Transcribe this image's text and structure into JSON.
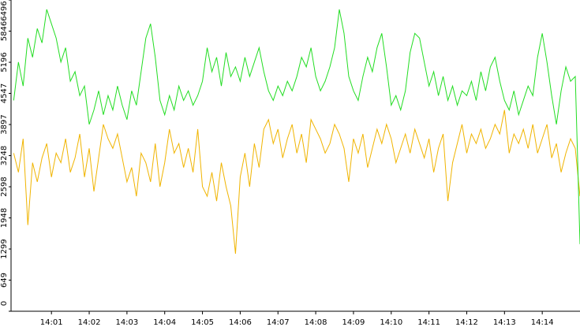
{
  "chart_data": {
    "type": "line",
    "x": [
      0,
      0.125,
      0.25,
      0.375,
      0.5,
      0.625,
      0.75,
      0.875,
      1,
      1.125,
      1.25,
      1.375,
      1.5,
      1.625,
      1.75,
      1.875,
      2,
      2.125,
      2.25,
      2.375,
      2.5,
      2.625,
      2.75,
      2.875,
      3,
      3.125,
      3.25,
      3.375,
      3.5,
      3.625,
      3.75,
      3.875,
      4,
      4.125,
      4.25,
      4.375,
      4.5,
      4.625,
      4.75,
      4.875,
      5,
      5.125,
      5.25,
      5.375,
      5.5,
      5.625,
      5.75,
      5.875,
      6,
      6.125,
      6.25,
      6.375,
      6.5,
      6.625,
      6.75,
      6.875,
      7,
      7.125,
      7.25,
      7.375,
      7.5,
      7.625,
      7.75,
      7.875,
      8,
      8.125,
      8.25,
      8.375,
      8.5,
      8.625,
      8.75,
      8.875,
      9,
      9.125,
      9.25,
      9.375,
      9.5,
      9.625,
      9.75,
      9.875,
      10,
      10.125,
      10.25,
      10.375,
      10.5,
      10.625,
      10.75,
      10.875,
      11,
      11.125,
      11.25,
      11.375,
      11.5,
      11.625,
      11.75,
      11.875,
      12,
      12.125,
      12.25,
      12.375,
      12.5,
      12.625,
      12.75,
      12.875,
      13,
      13.125,
      13.25,
      13.375,
      13.5,
      13.625,
      13.75,
      13.875,
      14,
      14.125,
      14.25,
      14.375,
      14.5,
      14.625,
      14.75,
      14.875,
      15
    ],
    "series": [
      {
        "color": "#f0b400",
        "values": [
          3300,
          2900,
          3600,
          1800,
          3100,
          2700,
          3200,
          3500,
          2800,
          3300,
          3100,
          3600,
          2900,
          3200,
          3700,
          2800,
          3400,
          2500,
          3200,
          3900,
          3600,
          3400,
          3700,
          3200,
          2700,
          3000,
          2400,
          3300,
          3100,
          2700,
          3500,
          2600,
          3100,
          3800,
          3300,
          3500,
          3000,
          3400,
          2900,
          3800,
          2600,
          2400,
          2900,
          2300,
          3100,
          2600,
          2200,
          1200,
          2800,
          3300,
          2600,
          3500,
          3000,
          3800,
          4000,
          3500,
          3800,
          3200,
          3600,
          3900,
          3300,
          3700,
          3100,
          4000,
          3800,
          3600,
          3300,
          3500,
          3900,
          3700,
          3400,
          2700,
          3600,
          3300,
          3700,
          3000,
          3400,
          3800,
          3500,
          3900,
          3600,
          3100,
          3400,
          3700,
          3300,
          3800,
          3500,
          3200,
          3600,
          2900,
          3400,
          3700,
          2300,
          3100,
          3500,
          3900,
          3300,
          3700,
          3500,
          3800,
          3400,
          3600,
          3900,
          3700,
          4200,
          3300,
          3700,
          3500,
          3800,
          3400,
          3900,
          3300,
          3600,
          3900,
          3200,
          3500,
          2900,
          3300,
          3600,
          3400,
          2400
        ]
      },
      {
        "color": "#22dd22",
        "values": [
          4400,
          5200,
          4700,
          5700,
          5300,
          5900,
          5600,
          6300,
          6000,
          5700,
          5200,
          5500,
          4800,
          5000,
          4500,
          4700,
          3900,
          4200,
          4600,
          4100,
          4500,
          4200,
          4700,
          4300,
          4000,
          4600,
          4300,
          5000,
          5700,
          6000,
          5300,
          4400,
          4100,
          4500,
          4200,
          4700,
          4400,
          4600,
          4300,
          4500,
          4800,
          5500,
          5000,
          5300,
          4700,
          5400,
          4900,
          5100,
          4800,
          5300,
          4900,
          5200,
          5500,
          5000,
          4600,
          4400,
          4700,
          4500,
          4800,
          4600,
          4900,
          5300,
          5100,
          5500,
          4900,
          4600,
          4800,
          5100,
          5500,
          6300,
          5800,
          4900,
          4600,
          4400,
          4900,
          5300,
          5000,
          5500,
          5800,
          5100,
          4300,
          4500,
          4200,
          4600,
          5400,
          5800,
          5700,
          5200,
          4700,
          5000,
          4500,
          4900,
          4400,
          4700,
          4300,
          4600,
          4500,
          4800,
          4400,
          5000,
          4600,
          5100,
          5300,
          4800,
          4400,
          4200,
          4600,
          4100,
          4400,
          4700,
          4500,
          5300,
          5800,
          5200,
          4500,
          3900,
          4600,
          5100,
          4800,
          4900,
          1400
        ]
      }
    ],
    "xlim": [
      -0.07,
      15
    ],
    "xticks": [
      {
        "value": 1,
        "label": "14:01"
      },
      {
        "value": 2,
        "label": "14:02"
      },
      {
        "value": 3,
        "label": "14:03"
      },
      {
        "value": 4,
        "label": "14:04"
      },
      {
        "value": 5,
        "label": "14:05"
      },
      {
        "value": 6,
        "label": "14:06"
      },
      {
        "value": 7,
        "label": "14:07"
      },
      {
        "value": 8,
        "label": "14:08"
      },
      {
        "value": 9,
        "label": "14:09"
      },
      {
        "value": 10,
        "label": "14:10"
      },
      {
        "value": 11,
        "label": "14:11"
      },
      {
        "value": 12,
        "label": "14:12"
      },
      {
        "value": 13,
        "label": "14:13"
      },
      {
        "value": 14,
        "label": "14:14"
      }
    ],
    "ylim": [
      0,
      6496
    ],
    "yticks": [
      0,
      649,
      1299,
      1948,
      2598,
      3248,
      3897,
      4547,
      5196,
      5846,
      6496
    ]
  }
}
